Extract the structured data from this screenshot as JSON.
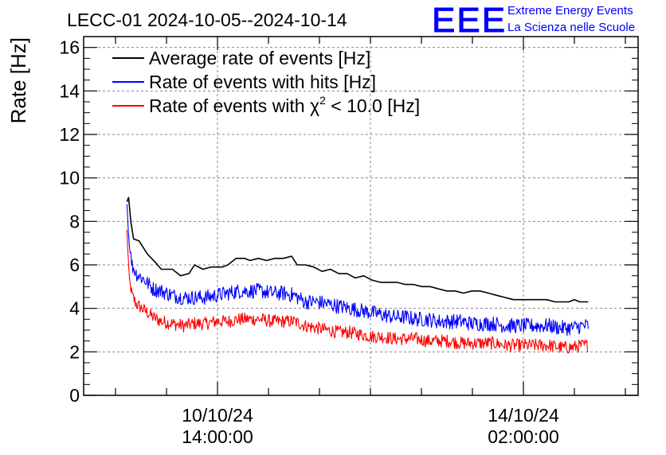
{
  "chart_data": {
    "type": "line",
    "title": "LECC-01 2024-10-05--2024-10-14",
    "xlabel": "",
    "ylabel": "Rate [Hz]",
    "ylim": [
      0,
      16.5
    ],
    "yticks": [
      0,
      2,
      4,
      6,
      8,
      10,
      12,
      14,
      16
    ],
    "xlim": [
      0,
      1
    ],
    "xticks": [
      {
        "pos": 0.2414,
        "line1": "10/10/24",
        "line2": "14:00:00"
      },
      {
        "pos": 0.7931,
        "line1": "14/10/24",
        "line2": "02:00:00"
      }
    ],
    "grid": true,
    "legend_position": "top-left",
    "series": [
      {
        "name": "Average rate of events [Hz]",
        "color": "#000000",
        "noise": 0,
        "points": [
          [
            0.078,
            8.9
          ],
          [
            0.081,
            9.1
          ],
          [
            0.085,
            8.0
          ],
          [
            0.09,
            7.2
          ],
          [
            0.1,
            7.1
          ],
          [
            0.115,
            6.5
          ],
          [
            0.13,
            6.1
          ],
          [
            0.14,
            5.8
          ],
          [
            0.16,
            5.8
          ],
          [
            0.175,
            5.5
          ],
          [
            0.19,
            5.6
          ],
          [
            0.2,
            6.0
          ],
          [
            0.215,
            5.8
          ],
          [
            0.23,
            5.9
          ],
          [
            0.25,
            5.9
          ],
          [
            0.26,
            6.0
          ],
          [
            0.275,
            6.3
          ],
          [
            0.29,
            6.3
          ],
          [
            0.3,
            6.2
          ],
          [
            0.315,
            6.3
          ],
          [
            0.33,
            6.2
          ],
          [
            0.345,
            6.3
          ],
          [
            0.36,
            6.3
          ],
          [
            0.375,
            6.4
          ],
          [
            0.385,
            6.0
          ],
          [
            0.4,
            6.0
          ],
          [
            0.415,
            5.9
          ],
          [
            0.43,
            5.7
          ],
          [
            0.445,
            5.8
          ],
          [
            0.46,
            5.6
          ],
          [
            0.475,
            5.6
          ],
          [
            0.49,
            5.4
          ],
          [
            0.505,
            5.5
          ],
          [
            0.52,
            5.3
          ],
          [
            0.535,
            5.2
          ],
          [
            0.55,
            5.2
          ],
          [
            0.565,
            5.2
          ],
          [
            0.58,
            5.1
          ],
          [
            0.595,
            5.1
          ],
          [
            0.61,
            5.0
          ],
          [
            0.625,
            5.0
          ],
          [
            0.64,
            4.9
          ],
          [
            0.655,
            4.8
          ],
          [
            0.67,
            4.8
          ],
          [
            0.685,
            4.7
          ],
          [
            0.7,
            4.8
          ],
          [
            0.715,
            4.8
          ],
          [
            0.73,
            4.7
          ],
          [
            0.745,
            4.6
          ],
          [
            0.76,
            4.5
          ],
          [
            0.775,
            4.4
          ],
          [
            0.79,
            4.4
          ],
          [
            0.805,
            4.4
          ],
          [
            0.82,
            4.4
          ],
          [
            0.835,
            4.4
          ],
          [
            0.85,
            4.3
          ],
          [
            0.865,
            4.3
          ],
          [
            0.875,
            4.3
          ],
          [
            0.885,
            4.4
          ],
          [
            0.895,
            4.3
          ],
          [
            0.91,
            4.3
          ]
        ]
      },
      {
        "name": "Rate of events with hits [Hz]",
        "color": "#0000ff",
        "noise": 0.35,
        "points": [
          [
            0.078,
            8.8
          ],
          [
            0.082,
            7.0
          ],
          [
            0.087,
            6.0
          ],
          [
            0.095,
            5.6
          ],
          [
            0.11,
            5.3
          ],
          [
            0.125,
            4.9
          ],
          [
            0.14,
            4.8
          ],
          [
            0.16,
            4.6
          ],
          [
            0.18,
            4.5
          ],
          [
            0.2,
            4.5
          ],
          [
            0.22,
            4.5
          ],
          [
            0.24,
            4.6
          ],
          [
            0.26,
            4.7
          ],
          [
            0.28,
            4.8
          ],
          [
            0.3,
            4.8
          ],
          [
            0.32,
            4.8
          ],
          [
            0.34,
            4.7
          ],
          [
            0.36,
            4.7
          ],
          [
            0.38,
            4.6
          ],
          [
            0.4,
            4.3
          ],
          [
            0.42,
            4.3
          ],
          [
            0.44,
            4.2
          ],
          [
            0.46,
            4.1
          ],
          [
            0.48,
            4.0
          ],
          [
            0.5,
            3.9
          ],
          [
            0.52,
            3.8
          ],
          [
            0.54,
            3.7
          ],
          [
            0.56,
            3.6
          ],
          [
            0.58,
            3.6
          ],
          [
            0.6,
            3.5
          ],
          [
            0.62,
            3.5
          ],
          [
            0.64,
            3.4
          ],
          [
            0.66,
            3.4
          ],
          [
            0.68,
            3.4
          ],
          [
            0.7,
            3.3
          ],
          [
            0.72,
            3.3
          ],
          [
            0.74,
            3.3
          ],
          [
            0.76,
            3.2
          ],
          [
            0.78,
            3.2
          ],
          [
            0.8,
            3.2
          ],
          [
            0.82,
            3.2
          ],
          [
            0.84,
            3.2
          ],
          [
            0.86,
            3.1
          ],
          [
            0.88,
            3.1
          ],
          [
            0.9,
            3.2
          ],
          [
            0.91,
            3.2
          ]
        ]
      },
      {
        "name": "Rate of events with χ² < 10.0 [Hz]",
        "color": "#ff0000",
        "noise": 0.3,
        "points": [
          [
            0.078,
            7.6
          ],
          [
            0.082,
            5.5
          ],
          [
            0.087,
            4.6
          ],
          [
            0.095,
            4.2
          ],
          [
            0.11,
            3.9
          ],
          [
            0.125,
            3.6
          ],
          [
            0.14,
            3.4
          ],
          [
            0.16,
            3.3
          ],
          [
            0.18,
            3.2
          ],
          [
            0.2,
            3.3
          ],
          [
            0.22,
            3.3
          ],
          [
            0.24,
            3.4
          ],
          [
            0.26,
            3.4
          ],
          [
            0.28,
            3.5
          ],
          [
            0.3,
            3.5
          ],
          [
            0.32,
            3.5
          ],
          [
            0.34,
            3.4
          ],
          [
            0.36,
            3.4
          ],
          [
            0.38,
            3.4
          ],
          [
            0.4,
            3.2
          ],
          [
            0.42,
            3.1
          ],
          [
            0.44,
            3.0
          ],
          [
            0.46,
            2.9
          ],
          [
            0.48,
            2.9
          ],
          [
            0.5,
            2.8
          ],
          [
            0.52,
            2.7
          ],
          [
            0.54,
            2.7
          ],
          [
            0.56,
            2.6
          ],
          [
            0.58,
            2.6
          ],
          [
            0.6,
            2.6
          ],
          [
            0.62,
            2.5
          ],
          [
            0.64,
            2.5
          ],
          [
            0.66,
            2.5
          ],
          [
            0.68,
            2.4
          ],
          [
            0.7,
            2.4
          ],
          [
            0.72,
            2.4
          ],
          [
            0.74,
            2.4
          ],
          [
            0.76,
            2.3
          ],
          [
            0.78,
            2.3
          ],
          [
            0.8,
            2.3
          ],
          [
            0.82,
            2.3
          ],
          [
            0.84,
            2.3
          ],
          [
            0.86,
            2.2
          ],
          [
            0.88,
            2.2
          ],
          [
            0.9,
            2.3
          ],
          [
            0.91,
            2.3
          ]
        ]
      }
    ],
    "legend": {
      "avg": "Average rate of events [Hz]",
      "hits": "Rate of events with hits [Hz]",
      "chi_prefix": "Rate of events with ",
      "chi_symbol": "χ",
      "chi_sup": "2",
      "chi_suffix": " < 10.0 [Hz]"
    }
  },
  "logo": {
    "letters": "EEE",
    "line1": "Extreme Energy Events",
    "line2": "La Scienza nelle Scuole",
    "color": "#0000ff"
  }
}
